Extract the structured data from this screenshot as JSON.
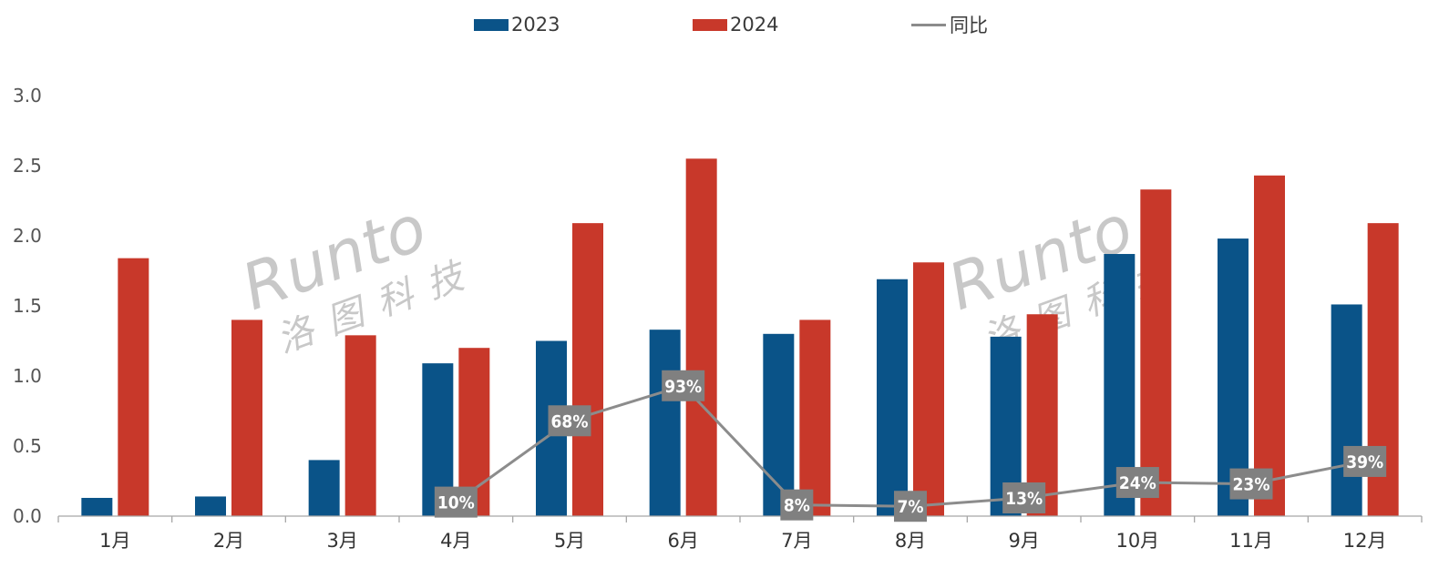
{
  "colors": {
    "series_2023": "#0a5388",
    "series_2024": "#c8382a",
    "yoy_line": "#8c8c8c",
    "label_box": "#808080",
    "axis": "#a6a6a6"
  },
  "watermark": {
    "brand": "Runto",
    "name_cn": "洛图科技"
  },
  "chart_data": {
    "type": "bar",
    "categories": [
      "1月",
      "2月",
      "3月",
      "4月",
      "5月",
      "6月",
      "7月",
      "8月",
      "9月",
      "10月",
      "11月",
      "12月"
    ],
    "series": [
      {
        "name": "2023",
        "values": [
          0.13,
          0.14,
          0.4,
          1.09,
          1.25,
          1.33,
          1.3,
          1.69,
          1.28,
          1.87,
          1.98,
          1.51
        ]
      },
      {
        "name": "2024",
        "values": [
          1.84,
          1.4,
          1.29,
          1.2,
          2.09,
          2.55,
          1.4,
          1.81,
          1.44,
          2.33,
          2.43,
          2.09
        ]
      }
    ],
    "line_series": {
      "name": "同比",
      "start_index": 3,
      "values": [
        10,
        68,
        93,
        8,
        7,
        13,
        24,
        23,
        39
      ],
      "labels": [
        "10%",
        "68%",
        "93%",
        "8%",
        "7%",
        "13%",
        "24%",
        "23%",
        "39%"
      ],
      "ylim": [
        0,
        300
      ]
    },
    "y_ticks": [
      "0.0",
      "0.5",
      "1.0",
      "1.5",
      "2.0",
      "2.5",
      "3.0"
    ],
    "ylim": [
      0,
      3.0
    ],
    "grid": false,
    "legend": "top-center",
    "title": "",
    "xlabel": "",
    "ylabel": ""
  }
}
